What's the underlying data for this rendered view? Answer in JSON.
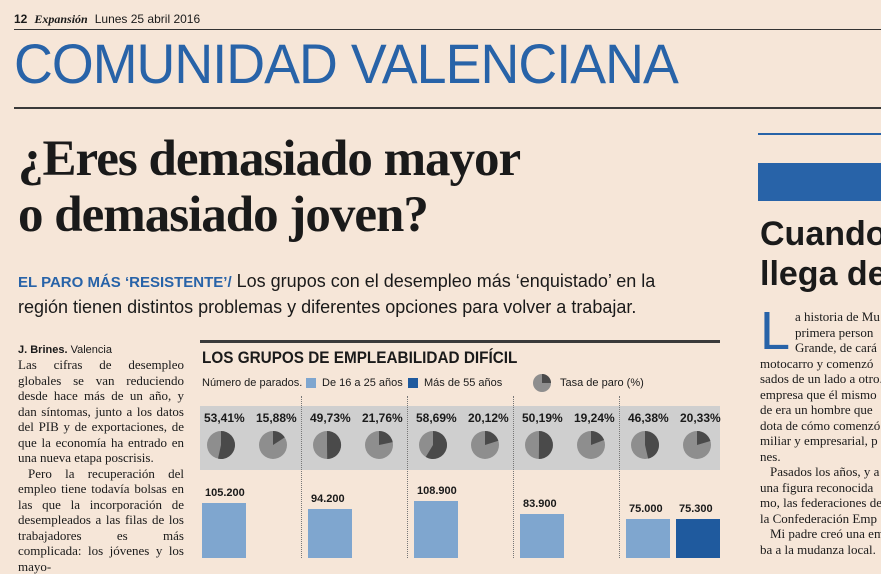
{
  "folio": {
    "page": "12",
    "brand": "Expansión",
    "date": "Lunes 25 abril 2016"
  },
  "section": "COMUNIDAD VALENCIANA",
  "headline": [
    "¿Eres demasiado mayor",
    "o demasiado joven?"
  ],
  "deck": {
    "kicker": "EL PARO MÁS ‘RESISTENTE’/",
    "text": " Los grupos con el desempleo más ‘enquistado’ en la región tienen distintos problemas y diferentes opciones para volver a trabajar."
  },
  "byline": {
    "author": "J. Brines.",
    "place": " Valencia"
  },
  "body": [
    "Las cifras de desempleo globales se van reduciendo desde hace más de un año, y dan síntomas, junto a los datos del PIB y de exportaciones, de que la economía ha entrado en una nueva etapa poscrisis.",
    "Pero la recuperación del empleo tiene todavía bolsas en las que la incorporación de desempleados a las filas de los trabajadores es más complicada: los jóvenes y los mayo-"
  ],
  "colors": {
    "young": "#7fa6cf",
    "old": "#1f5a9e",
    "pie_dark": "#4a4a4a",
    "pie_light": "#8e8e8e",
    "band": "#cfcfcf"
  },
  "chart_data": {
    "type": "bar",
    "title": "LOS GRUPOS DE EMPLEABILIDAD DIFÍCIL",
    "legend": {
      "count_label": "Número de parados.",
      "young": "De 16 a 25 años",
      "old": "Más de 55 años",
      "rate": "Tasa de paro (%)"
    },
    "series": [
      {
        "name": "De 16 a 25 años",
        "values": [
          105200,
          94200,
          108900,
          83900,
          75000
        ]
      },
      {
        "name": "Más de 55 años",
        "values": [
          null,
          null,
          null,
          null,
          75300
        ]
      }
    ],
    "value_labels": [
      [
        "105.200",
        "94.200",
        "108.900",
        "83.900",
        "75.000"
      ],
      [
        null,
        null,
        null,
        null,
        "75.300"
      ]
    ],
    "rates": [
      [
        "53,41%",
        "15,88%"
      ],
      [
        "49,73%",
        "21,76%"
      ],
      [
        "58,69%",
        "20,12%"
      ],
      [
        "50,19%",
        "19,24%"
      ],
      [
        "46,38%",
        "20,33%"
      ]
    ],
    "rate_values": [
      [
        53.41,
        15.88
      ],
      [
        49.73,
        21.76
      ],
      [
        58.69,
        20.12
      ],
      [
        50.19,
        19.24
      ],
      [
        46.38,
        20.33
      ]
    ]
  },
  "sidebar": {
    "title": [
      "Cuando",
      "llega de"
    ],
    "dropcap": "L",
    "lines": [
      "a historia de Mu",
      "primera person",
      "Grande, de cará",
      "motocarro y comenzó",
      "sados de un lado a otro.",
      "empresa que él mismo",
      "de era un hombre que",
      "dota de cómo comenzó",
      "miliar y empresarial, p",
      "nes.",
      "Pasados los años, y a",
      "una figura reconocida",
      "mo, las federaciones de",
      "la Confederación Emp",
      "Mi padre creó una em",
      "ba a la mudanza local."
    ]
  }
}
